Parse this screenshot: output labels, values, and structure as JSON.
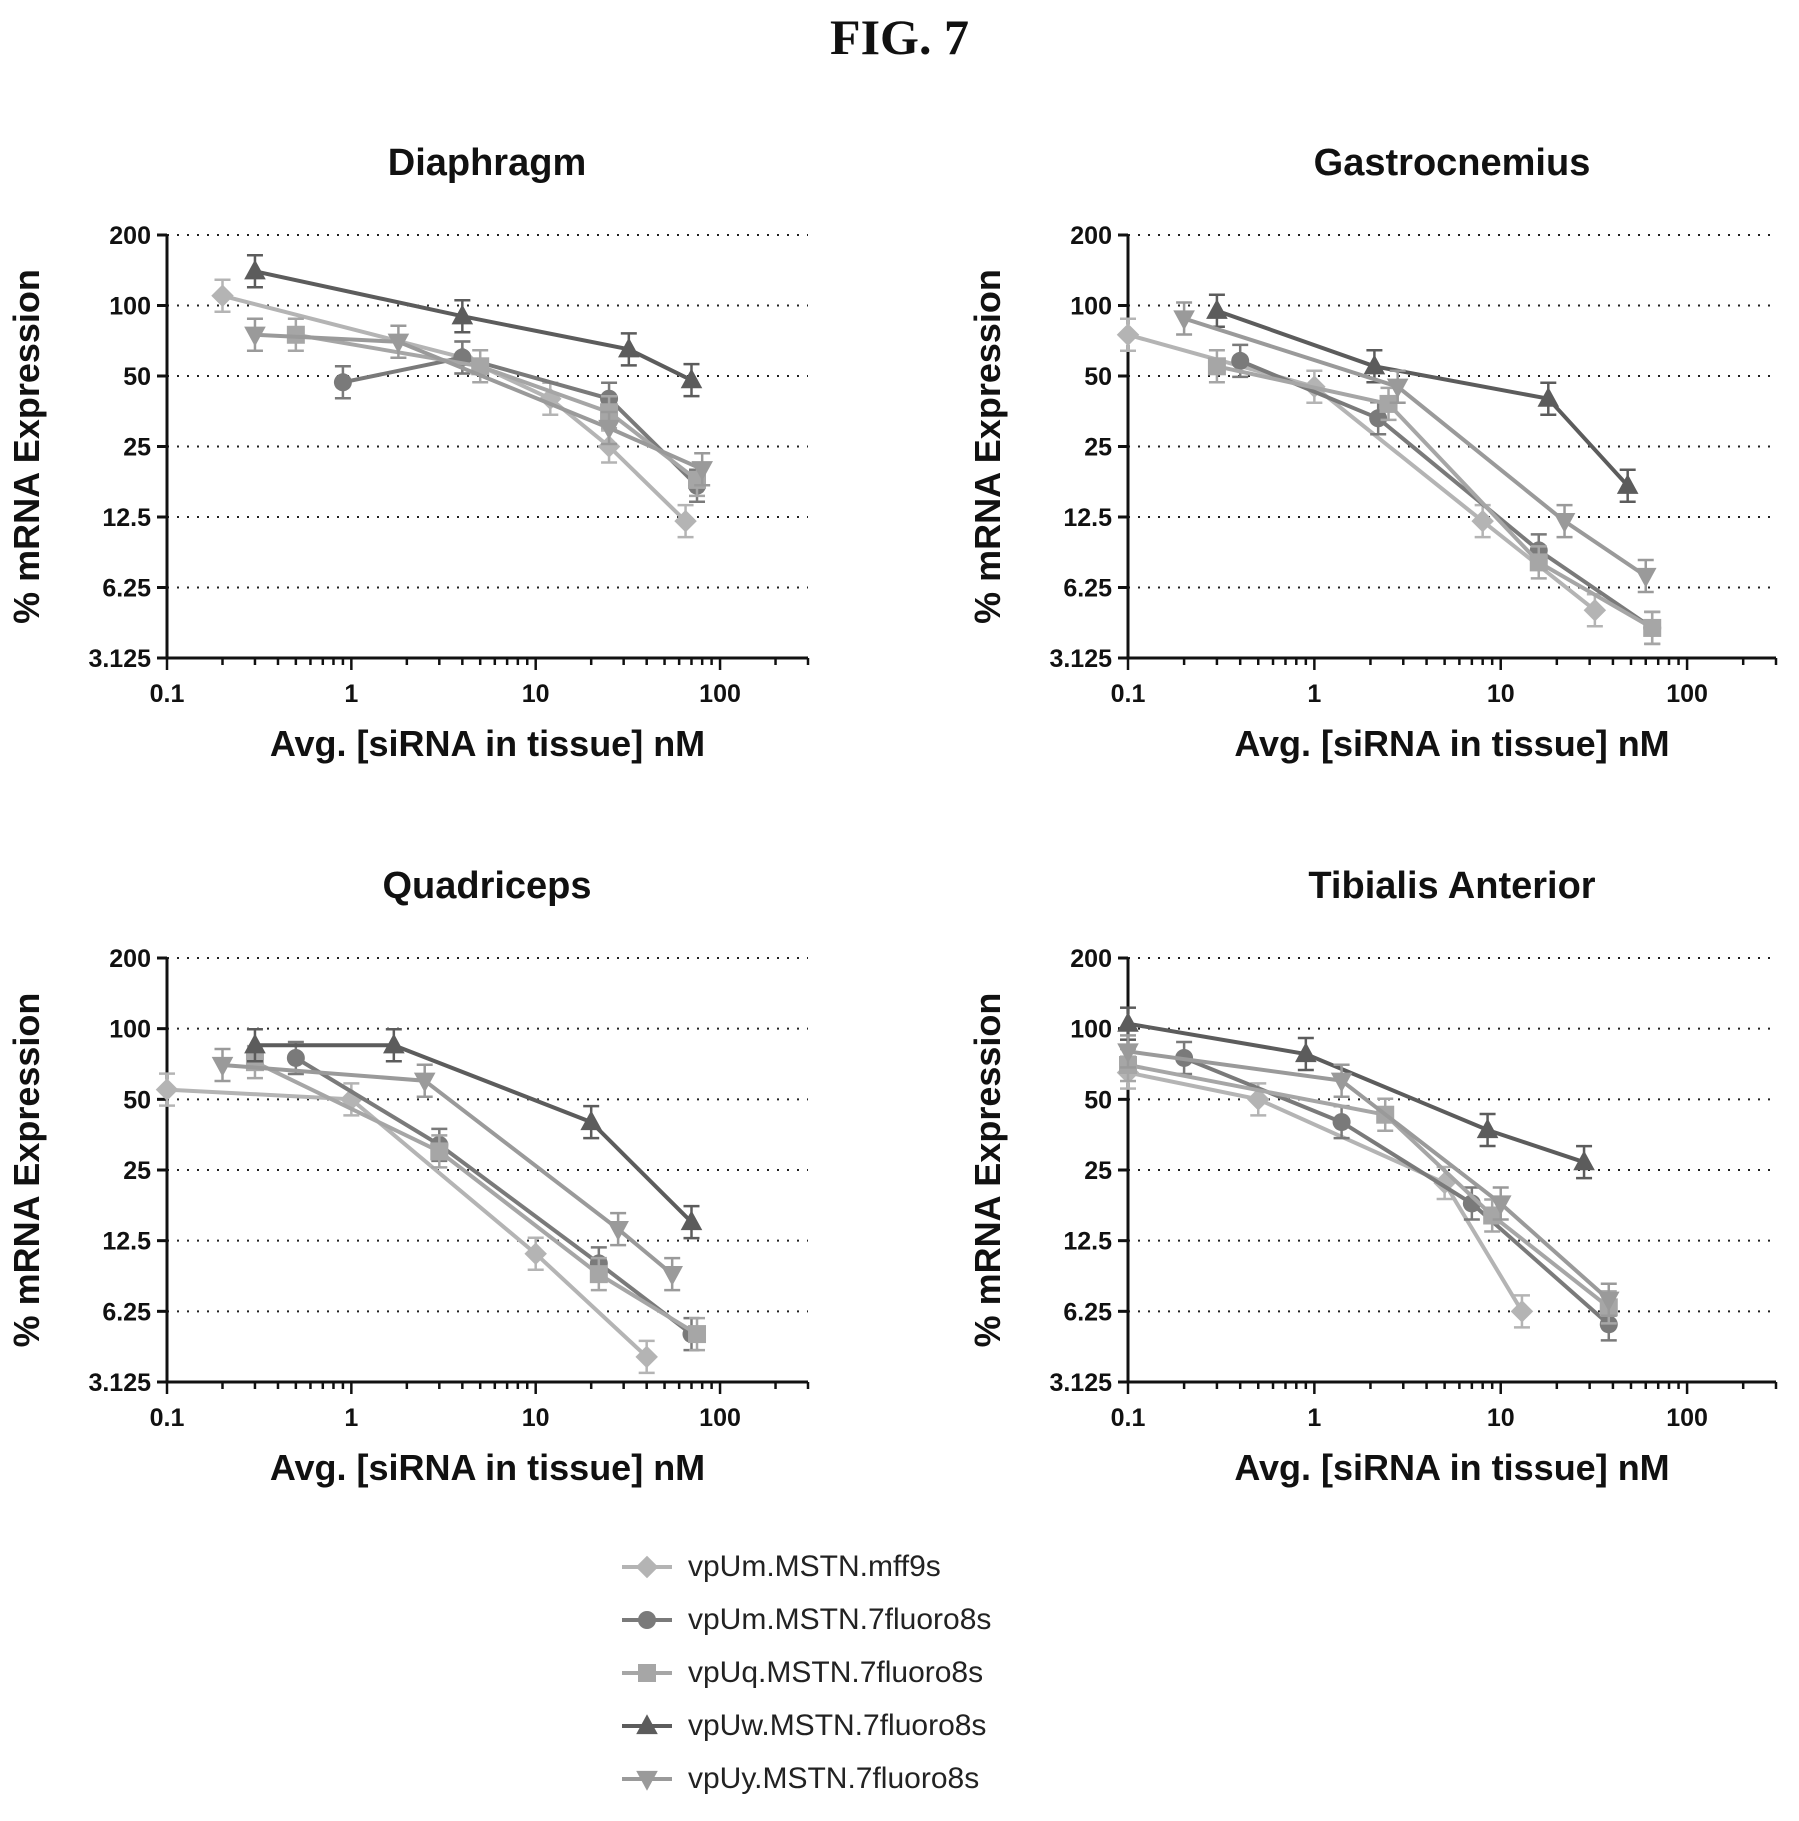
{
  "figure_title": "FIG. 7",
  "legend": [
    {
      "label": "vpUm.MSTN.mff9s",
      "marker": "diamond",
      "color": "#b4b4b4"
    },
    {
      "label": "vpUm.MSTN.7fluoro8s",
      "marker": "circle",
      "color": "#7a7a7a"
    },
    {
      "label": "vpUq.MSTN.7fluoro8s",
      "marker": "square",
      "color": "#a6a6a6"
    },
    {
      "label": "vpUw.MSTN.7fluoro8s",
      "marker": "triangle-up",
      "color": "#5c5c5c"
    },
    {
      "label": "vpUy.MSTN.7fluoro8s",
      "marker": "triangle-down",
      "color": "#9a9a9a"
    }
  ],
  "chart_data": [
    {
      "type": "line",
      "title": "Diaphragm",
      "xlabel": "Avg. [siRNA in tissue] nM",
      "ylabel": "% mRNA Expression",
      "x_scale": "log",
      "y_scale": "log2",
      "xlim": [
        0.1,
        300
      ],
      "ylim": [
        3.125,
        200
      ],
      "x_ticks": [
        0.1,
        1,
        10,
        100
      ],
      "y_ticks": [
        3.125,
        6.25,
        12.5,
        25,
        50,
        100,
        200
      ],
      "y_tick_labels": [
        "3.125",
        "6.25",
        "12.5",
        "25",
        "50",
        "100",
        "200"
      ],
      "grid": "horizontal-dotted",
      "series": [
        {
          "name": "vpUm.MSTN.mff9s",
          "x": [
            0.2,
            4,
            12,
            25,
            65
          ],
          "y": [
            110,
            60,
            40,
            25,
            12
          ]
        },
        {
          "name": "vpUm.MSTN.7fluoro8s",
          "x": [
            0.9,
            4,
            25,
            75
          ],
          "y": [
            47,
            60,
            40,
            17
          ]
        },
        {
          "name": "vpUq.MSTN.7fluoro8s",
          "x": [
            0.5,
            5,
            25,
            75
          ],
          "y": [
            75,
            55,
            35,
            18
          ]
        },
        {
          "name": "vpUw.MSTN.7fluoro8s",
          "x": [
            0.3,
            4,
            32,
            70
          ],
          "y": [
            140,
            90,
            65,
            48
          ]
        },
        {
          "name": "vpUy.MSTN.7fluoro8s",
          "x": [
            0.3,
            1.8,
            25,
            80
          ],
          "y": [
            75,
            70,
            30,
            20
          ]
        }
      ]
    },
    {
      "type": "line",
      "title": "Gastrocnemius",
      "xlabel": "Avg. [siRNA in tissue] nM",
      "ylabel": "% mRNA Expression",
      "x_scale": "log",
      "y_scale": "log2",
      "xlim": [
        0.1,
        300
      ],
      "ylim": [
        3.125,
        200
      ],
      "x_ticks": [
        0.1,
        1,
        10,
        100
      ],
      "y_ticks": [
        3.125,
        6.25,
        12.5,
        25,
        50,
        100,
        200
      ],
      "y_tick_labels": [
        "3.125",
        "6.25",
        "12.5",
        "25",
        "50",
        "100",
        "200"
      ],
      "grid": "horizontal-dotted",
      "series": [
        {
          "name": "vpUm.MSTN.mff9s",
          "x": [
            0.1,
            1,
            8,
            32
          ],
          "y": [
            75,
            45,
            12,
            5
          ]
        },
        {
          "name": "vpUm.MSTN.7fluoro8s",
          "x": [
            0.4,
            2.2,
            16,
            65
          ],
          "y": [
            58,
            33,
            9,
            4.2
          ]
        },
        {
          "name": "vpUq.MSTN.7fluoro8s",
          "x": [
            0.3,
            2.5,
            16,
            65
          ],
          "y": [
            55,
            38,
            8,
            4.2
          ]
        },
        {
          "name": "vpUw.MSTN.7fluoro8s",
          "x": [
            0.3,
            2.1,
            18,
            48
          ],
          "y": [
            95,
            55,
            40,
            17
          ]
        },
        {
          "name": "vpUy.MSTN.7fluoro8s",
          "x": [
            0.2,
            2.8,
            22,
            60
          ],
          "y": [
            88,
            45,
            12,
            7
          ]
        }
      ]
    },
    {
      "type": "line",
      "title": "Quadriceps",
      "xlabel": "Avg. [siRNA in tissue] nM",
      "ylabel": "% mRNA Expression",
      "x_scale": "log",
      "y_scale": "log2",
      "xlim": [
        0.1,
        300
      ],
      "ylim": [
        3.125,
        200
      ],
      "x_ticks": [
        0.1,
        1,
        10,
        100
      ],
      "y_ticks": [
        3.125,
        6.25,
        12.5,
        25,
        50,
        100,
        200
      ],
      "y_tick_labels": [
        "3.125",
        "6.25",
        "12.5",
        "25",
        "50",
        "100",
        "200"
      ],
      "grid": "horizontal-dotted",
      "series": [
        {
          "name": "vpUm.MSTN.mff9s",
          "x": [
            0.1,
            1,
            10,
            40
          ],
          "y": [
            55,
            50,
            11,
            4
          ]
        },
        {
          "name": "vpUm.MSTN.7fluoro8s",
          "x": [
            0.5,
            3,
            22,
            70
          ],
          "y": [
            75,
            32,
            10,
            5
          ]
        },
        {
          "name": "vpUq.MSTN.7fluoro8s",
          "x": [
            0.3,
            3,
            22,
            75
          ],
          "y": [
            72,
            30,
            9,
            5
          ]
        },
        {
          "name": "vpUw.MSTN.7fluoro8s",
          "x": [
            0.3,
            1.7,
            20,
            70
          ],
          "y": [
            85,
            85,
            40,
            15
          ]
        },
        {
          "name": "vpUy.MSTN.7fluoro8s",
          "x": [
            0.2,
            2.5,
            28,
            55
          ],
          "y": [
            70,
            60,
            14,
            9
          ]
        }
      ]
    },
    {
      "type": "line",
      "title": "Tibialis Anterior",
      "xlabel": "Avg. [siRNA in tissue] nM",
      "ylabel": "% mRNA Expression",
      "x_scale": "log",
      "y_scale": "log2",
      "xlim": [
        0.1,
        300
      ],
      "ylim": [
        3.125,
        200
      ],
      "x_ticks": [
        0.1,
        1,
        10,
        100
      ],
      "y_ticks": [
        3.125,
        6.25,
        12.5,
        25,
        50,
        100,
        200
      ],
      "y_tick_labels": [
        "3.125",
        "6.25",
        "12.5",
        "25",
        "50",
        "100",
        "200"
      ],
      "grid": "horizontal-dotted",
      "series": [
        {
          "name": "vpUm.MSTN.mff9s",
          "x": [
            0.1,
            0.5,
            5,
            13
          ],
          "y": [
            65,
            50,
            22,
            6.25
          ]
        },
        {
          "name": "vpUm.MSTN.7fluoro8s",
          "x": [
            0.2,
            1.4,
            7,
            38
          ],
          "y": [
            75,
            40,
            18,
            5.5
          ]
        },
        {
          "name": "vpUq.MSTN.7fluoro8s",
          "x": [
            0.1,
            2.4,
            9,
            38
          ],
          "y": [
            70,
            43,
            16,
            6.5
          ]
        },
        {
          "name": "vpUw.MSTN.7fluoro8s",
          "x": [
            0.1,
            0.9,
            8.5,
            28
          ],
          "y": [
            105,
            78,
            37,
            27
          ]
        },
        {
          "name": "vpUy.MSTN.7fluoro8s",
          "x": [
            0.1,
            1.4,
            10,
            38
          ],
          "y": [
            80,
            60,
            18,
            7
          ]
        }
      ]
    }
  ]
}
